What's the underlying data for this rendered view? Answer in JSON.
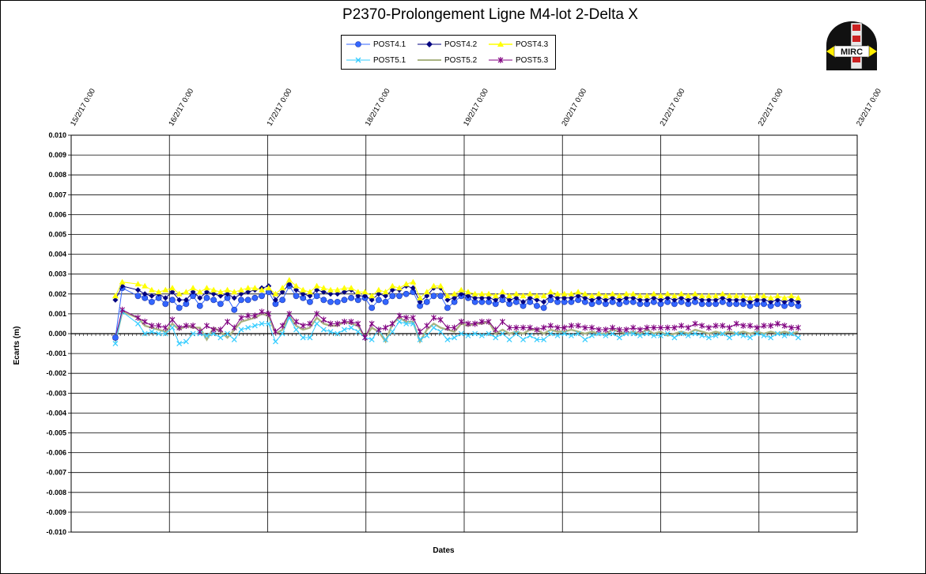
{
  "chart_data": {
    "type": "line",
    "title": "P2370-Prolongement  Ligne  M4-lot 2-Delta  X",
    "xlabel": "Dates",
    "ylabel": "Ecarts (m)",
    "x_ticks": [
      "15/2/17 0:00",
      "16/2/17 0:00",
      "17/2/17 0:00",
      "18/2/17 0:00",
      "19/2/17 0:00",
      "20/2/17 0:00",
      "21/2/17 0:00",
      "22/2/17 0:00",
      "23/2/17 0:00"
    ],
    "xlim": [
      0,
      8
    ],
    "x_unit": "days since 15/2/17 0:00",
    "y_ticks": [
      "0.010",
      "0.009",
      "0.008",
      "0.007",
      "0.006",
      "0.005",
      "0.004",
      "0.003",
      "0.002",
      "0.001",
      "0.000",
      "-0.001",
      "-0.002",
      "-0.003",
      "-0.004",
      "-0.005",
      "-0.006",
      "-0.007",
      "-0.008",
      "-0.009",
      "-0.010"
    ],
    "ylim": [
      -0.01,
      0.01
    ],
    "grid": "major gridlines",
    "legend_position": "top-center",
    "x": [
      0.45,
      0.52,
      0.68,
      0.75,
      0.82,
      0.89,
      0.96,
      1.03,
      1.1,
      1.17,
      1.24,
      1.31,
      1.38,
      1.45,
      1.52,
      1.59,
      1.66,
      1.73,
      1.8,
      1.87,
      1.94,
      2.01,
      2.08,
      2.15,
      2.22,
      2.29,
      2.36,
      2.43,
      2.5,
      2.57,
      2.64,
      2.71,
      2.78,
      2.85,
      2.92,
      2.99,
      3.06,
      3.13,
      3.2,
      3.27,
      3.34,
      3.41,
      3.48,
      3.55,
      3.62,
      3.69,
      3.76,
      3.83,
      3.9,
      3.97,
      4.04,
      4.11,
      4.18,
      4.25,
      4.32,
      4.39,
      4.46,
      4.53,
      4.6,
      4.67,
      4.74,
      4.81,
      4.88,
      4.95,
      5.02,
      5.09,
      5.16,
      5.23,
      5.3,
      5.37,
      5.44,
      5.51,
      5.58,
      5.65,
      5.72,
      5.79,
      5.86,
      5.93,
      6.0,
      6.07,
      6.14,
      6.21,
      6.28,
      6.35,
      6.42,
      6.49,
      6.56,
      6.63,
      6.7,
      6.77,
      6.84,
      6.91,
      6.98,
      7.05,
      7.12,
      7.19,
      7.26,
      7.33,
      7.4
    ],
    "series": [
      {
        "name": "POST4.1",
        "color": "#3366FF",
        "marker": "circle",
        "values": [
          -0.0002,
          0.0023,
          0.0019,
          0.0018,
          0.0016,
          0.0018,
          0.0015,
          0.0017,
          0.0013,
          0.0015,
          0.0019,
          0.0014,
          0.0018,
          0.0017,
          0.0015,
          0.0018,
          0.0012,
          0.0017,
          0.0017,
          0.0018,
          0.0019,
          0.0021,
          0.0015,
          0.0017,
          0.0024,
          0.0019,
          0.0018,
          0.0016,
          0.0019,
          0.0017,
          0.0016,
          0.0016,
          0.0017,
          0.0018,
          0.0017,
          0.0018,
          0.0013,
          0.0017,
          0.0016,
          0.0019,
          0.0019,
          0.002,
          0.0021,
          0.0014,
          0.0016,
          0.0019,
          0.0019,
          0.0013,
          0.0016,
          0.0019,
          0.0018,
          0.0016,
          0.0016,
          0.0016,
          0.0015,
          0.0017,
          0.0015,
          0.0016,
          0.0014,
          0.0016,
          0.0014,
          0.0013,
          0.0017,
          0.0016,
          0.0016,
          0.0016,
          0.0017,
          0.0016,
          0.0015,
          0.0016,
          0.0015,
          0.0016,
          0.0015,
          0.0016,
          0.0016,
          0.0015,
          0.0015,
          0.0016,
          0.0015,
          0.0016,
          0.0015,
          0.0016,
          0.0015,
          0.0016,
          0.0015,
          0.0015,
          0.0015,
          0.0016,
          0.0015,
          0.0015,
          0.0015,
          0.0014,
          0.0015,
          0.0015,
          0.0014,
          0.0015,
          0.0014,
          0.0015,
          0.0014
        ]
      },
      {
        "name": "POST4.2",
        "color": "#000080",
        "marker": "diamond",
        "values": [
          0.0017,
          0.0024,
          0.0022,
          0.002,
          0.0019,
          0.002,
          0.0018,
          0.0021,
          0.0017,
          0.0017,
          0.0021,
          0.0018,
          0.0021,
          0.002,
          0.0019,
          0.002,
          0.0018,
          0.002,
          0.0021,
          0.0022,
          0.0023,
          0.0024,
          0.0017,
          0.0021,
          0.0025,
          0.0022,
          0.002,
          0.0019,
          0.0022,
          0.0021,
          0.002,
          0.002,
          0.0021,
          0.0022,
          0.0019,
          0.0019,
          0.0017,
          0.002,
          0.0019,
          0.0022,
          0.0022,
          0.0024,
          0.0023,
          0.0016,
          0.0019,
          0.0023,
          0.0023,
          0.0017,
          0.0018,
          0.002,
          0.0019,
          0.0018,
          0.0018,
          0.0018,
          0.0017,
          0.0019,
          0.0017,
          0.0018,
          0.0016,
          0.0018,
          0.0017,
          0.0016,
          0.0019,
          0.0018,
          0.0018,
          0.0018,
          0.0019,
          0.0018,
          0.0017,
          0.0018,
          0.0017,
          0.0018,
          0.0017,
          0.0018,
          0.0018,
          0.0017,
          0.0017,
          0.0018,
          0.0017,
          0.0018,
          0.0017,
          0.0018,
          0.0017,
          0.0018,
          0.0017,
          0.0017,
          0.0017,
          0.0018,
          0.0017,
          0.0017,
          0.0017,
          0.0016,
          0.0017,
          0.0017,
          0.0016,
          0.0017,
          0.0016,
          0.0017,
          0.0016
        ]
      },
      {
        "name": "POST4.3",
        "color": "#FFFF00",
        "marker": "triangle",
        "values": [
          0.0019,
          0.0026,
          0.0025,
          0.0024,
          0.0022,
          0.0021,
          0.0022,
          0.0023,
          0.002,
          0.0021,
          0.0023,
          0.0021,
          0.0023,
          0.0022,
          0.0021,
          0.0022,
          0.0021,
          0.0022,
          0.0023,
          0.0023,
          0.0022,
          0.0023,
          0.002,
          0.0023,
          0.0027,
          0.0024,
          0.0022,
          0.0021,
          0.0024,
          0.0023,
          0.0022,
          0.0022,
          0.0023,
          0.0023,
          0.0021,
          0.0021,
          0.0019,
          0.0022,
          0.0021,
          0.0024,
          0.0023,
          0.0025,
          0.0026,
          0.0018,
          0.0021,
          0.0024,
          0.0024,
          0.0019,
          0.002,
          0.0022,
          0.0021,
          0.002,
          0.002,
          0.002,
          0.0019,
          0.0021,
          0.0019,
          0.002,
          0.0019,
          0.002,
          0.0019,
          0.0019,
          0.0021,
          0.002,
          0.002,
          0.002,
          0.0021,
          0.002,
          0.0019,
          0.002,
          0.0019,
          0.002,
          0.0019,
          0.002,
          0.002,
          0.0019,
          0.0019,
          0.002,
          0.0019,
          0.002,
          0.0019,
          0.002,
          0.0019,
          0.002,
          0.0019,
          0.0019,
          0.0019,
          0.002,
          0.0019,
          0.0019,
          0.0019,
          0.0018,
          0.0019,
          0.0019,
          0.0018,
          0.0019,
          0.0018,
          0.0019,
          0.0018
        ]
      },
      {
        "name": "POST5.1",
        "color": "#33CCFF",
        "marker": "x",
        "values": [
          -0.0005,
          0.0011,
          0.0005,
          0.0,
          0.0001,
          0.0,
          0.0,
          0.0003,
          -0.0005,
          -0.0004,
          0.0,
          0.0,
          -0.0001,
          0.0,
          -0.0002,
          0.0,
          -0.0003,
          0.0002,
          0.0003,
          0.0004,
          0.0005,
          0.0005,
          -0.0004,
          0.0,
          0.0008,
          0.0002,
          -0.0002,
          -0.0002,
          0.0005,
          0.0002,
          0.0001,
          0.0,
          0.0002,
          0.0003,
          0.0001,
          -0.0002,
          -0.0003,
          0.0002,
          -0.0003,
          0.0001,
          0.0006,
          0.0005,
          0.0005,
          -0.0003,
          -0.0001,
          0.0003,
          0.0001,
          -0.0003,
          -0.0002,
          0.0,
          -0.0001,
          0.0,
          -0.0001,
          0.0,
          -0.0002,
          0.0,
          -0.0003,
          0.0,
          -0.0003,
          -0.0001,
          -0.0003,
          -0.0003,
          0.0,
          -0.0001,
          0.0,
          -0.0001,
          0.0,
          -0.0003,
          -0.0001,
          0.0,
          -0.0001,
          0.0,
          -0.0002,
          0.0,
          0.0,
          -0.0001,
          0.0,
          -0.0001,
          -0.0001,
          0.0,
          -0.0002,
          0.0,
          -0.0001,
          0.0,
          -0.0001,
          -0.0002,
          -0.0001,
          0.0,
          -0.0002,
          0.0,
          -0.0001,
          -0.0002,
          0.0,
          -0.0001,
          -0.0002,
          0.0,
          -0.0001,
          0.0,
          -0.0002
        ]
      },
      {
        "name": "POST5.2",
        "color": "#A9B382",
        "marker": "none",
        "values": [
          -0.0004,
          0.0011,
          0.0008,
          0.0004,
          0.0003,
          0.0002,
          0.0001,
          0.0005,
          0.0002,
          0.0004,
          0.0003,
          0.0003,
          -0.0003,
          0.0003,
          0.0001,
          -0.0002,
          0.0002,
          0.0006,
          0.0007,
          0.0008,
          0.001,
          0.0009,
          0.0,
          0.0002,
          0.0009,
          0.0004,
          0.0002,
          0.0003,
          0.0008,
          0.0005,
          0.0004,
          0.0004,
          0.0006,
          0.0005,
          0.0004,
          -0.0002,
          0.0003,
          0.0001,
          -0.0004,
          0.0005,
          0.0008,
          0.0006,
          0.0006,
          -0.0004,
          0.0002,
          0.0005,
          0.0003,
          0.0002,
          0.0001,
          0.0005,
          0.0004,
          0.0005,
          0.0005,
          0.0006,
          0.0,
          0.0002,
          0.0,
          0.0001,
          0.0,
          0.0002,
          0.0002,
          0.0,
          0.0002,
          0.0001,
          0.0001,
          0.0002,
          0.0001,
          0.0,
          0.0001,
          0.0,
          0.0,
          0.0002,
          0.0001,
          0.0,
          0.0001,
          0.0,
          0.0002,
          0.0,
          0.0001,
          -0.0001,
          0.0,
          0.0001,
          0.0,
          0.0002,
          0.0001,
          0.0,
          0.0001,
          0.0,
          0.0001,
          0.0,
          0.0001,
          0.0,
          0.0001,
          0.0,
          0.0001,
          0.0,
          0.0001,
          0.0,
          0.0001
        ]
      },
      {
        "name": "POST5.3",
        "color": "#800080",
        "marker": "star",
        "values": [
          -0.0002,
          0.0012,
          0.0008,
          0.0006,
          0.0004,
          0.0004,
          0.0003,
          0.0007,
          0.0003,
          0.0004,
          0.0004,
          0.0001,
          0.0004,
          0.0002,
          0.0002,
          0.0006,
          0.0003,
          0.0008,
          0.0009,
          0.0009,
          0.0011,
          0.001,
          0.0001,
          0.0004,
          0.001,
          0.0006,
          0.0004,
          0.0005,
          0.001,
          0.0007,
          0.0005,
          0.0005,
          0.0006,
          0.0006,
          0.0005,
          -0.0002,
          0.0005,
          0.0002,
          0.0003,
          0.0005,
          0.0009,
          0.0008,
          0.0008,
          0.0001,
          0.0004,
          0.0008,
          0.0007,
          0.0003,
          0.0003,
          0.0006,
          0.0005,
          0.0005,
          0.0006,
          0.0006,
          0.0002,
          0.0006,
          0.0003,
          0.0003,
          0.0003,
          0.0003,
          0.0002,
          0.0003,
          0.0004,
          0.0003,
          0.0003,
          0.0004,
          0.0004,
          0.0003,
          0.0003,
          0.0002,
          0.0002,
          0.0003,
          0.0002,
          0.0002,
          0.0003,
          0.0002,
          0.0003,
          0.0003,
          0.0003,
          0.0003,
          0.0003,
          0.0004,
          0.0003,
          0.0005,
          0.0004,
          0.0003,
          0.0004,
          0.0004,
          0.0003,
          0.0005,
          0.0004,
          0.0004,
          0.0003,
          0.0004,
          0.0004,
          0.0005,
          0.0004,
          0.0003,
          0.0003
        ]
      }
    ]
  },
  "legend": {
    "items": [
      {
        "label": "POST4.1"
      },
      {
        "label": "POST4.2"
      },
      {
        "label": "POST4.3"
      },
      {
        "label": "POST5.1"
      },
      {
        "label": "POST5.2"
      },
      {
        "label": "POST5.3"
      }
    ]
  },
  "logo": {
    "text": "MIRC"
  }
}
